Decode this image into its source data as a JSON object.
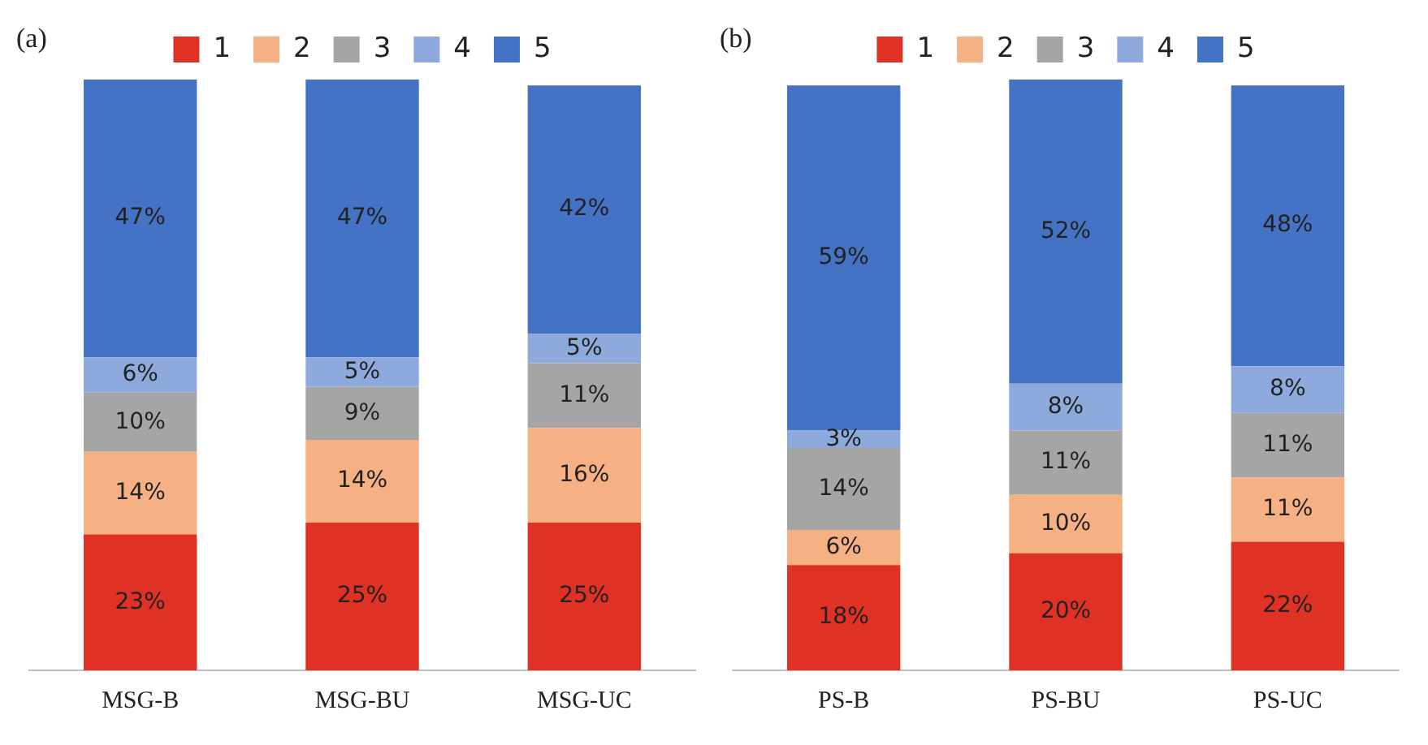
{
  "chart_data": [
    {
      "type": "bar",
      "title": "(a)",
      "stacked": true,
      "categories": [
        "MSG-B",
        "MSG-BU",
        "MSG-UC"
      ],
      "legend": "top",
      "tick_labels": "x",
      "series": [
        {
          "name": "1",
          "color": "#e03224",
          "values": [
            23,
            25,
            25
          ],
          "value_labels": [
            "23%",
            "25%",
            "25%"
          ]
        },
        {
          "name": "2",
          "color": "#f5b183",
          "values": [
            14,
            14,
            16
          ],
          "value_labels": [
            "14%",
            "14%",
            "16%"
          ]
        },
        {
          "name": "3",
          "color": "#a5a5a5",
          "values": [
            10,
            9,
            11
          ],
          "value_labels": [
            "10%",
            "9%",
            "11%"
          ]
        },
        {
          "name": "4",
          "color": "#8eaadc",
          "values": [
            6,
            5,
            5
          ],
          "value_labels": [
            "6%",
            "5%",
            "5%"
          ]
        },
        {
          "name": "5",
          "color": "#4472c4",
          "values": [
            47,
            47,
            42
          ],
          "value_labels": [
            "47%",
            "47%",
            "42%"
          ]
        }
      ]
    },
    {
      "type": "bar",
      "title": "(b)",
      "stacked": true,
      "categories": [
        "PS-B",
        "PS-BU",
        "PS-UC"
      ],
      "legend": "top",
      "tick_labels": "x",
      "series": [
        {
          "name": "1",
          "color": "#e03224",
          "values": [
            18,
            20,
            22
          ],
          "value_labels": [
            "18%",
            "20%",
            "22%"
          ]
        },
        {
          "name": "2",
          "color": "#f5b183",
          "values": [
            6,
            10,
            11
          ],
          "value_labels": [
            "6%",
            "10%",
            "11%"
          ]
        },
        {
          "name": "3",
          "color": "#a5a5a5",
          "values": [
            14,
            11,
            11
          ],
          "value_labels": [
            "14%",
            "11%",
            "11%"
          ]
        },
        {
          "name": "4",
          "color": "#8eaadc",
          "values": [
            3,
            8,
            8
          ],
          "value_labels": [
            "3%",
            "8%",
            "8%"
          ]
        },
        {
          "name": "5",
          "color": "#4472c4",
          "values": [
            59,
            52,
            48
          ],
          "value_labels": [
            "59%",
            "52%",
            "48%"
          ]
        }
      ]
    }
  ]
}
